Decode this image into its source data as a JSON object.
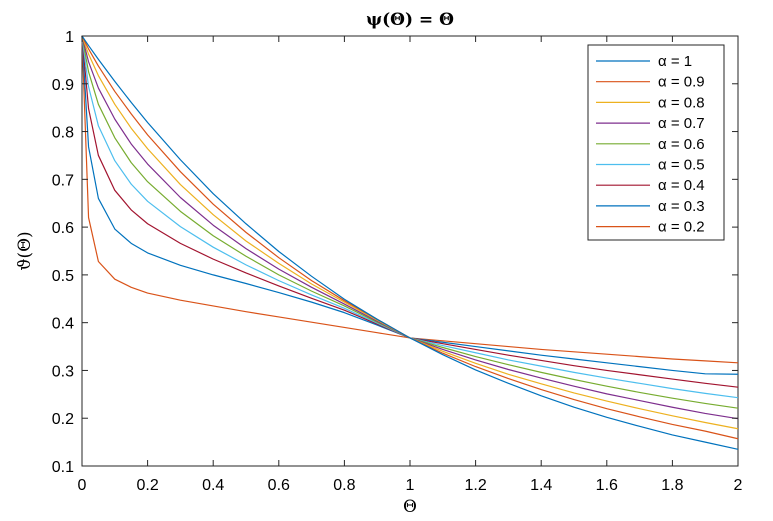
{
  "chart_data": {
    "type": "line",
    "title": "ψ(Θ) = Θ",
    "xlabel": "Θ",
    "ylabel": "ϑ(Θ)",
    "xlim": [
      0,
      2
    ],
    "ylim": [
      0.1,
      1
    ],
    "xticks": [
      0,
      0.2,
      0.4,
      0.6,
      0.8,
      1,
      1.2,
      1.4,
      1.6,
      1.8,
      2
    ],
    "xtick_labels": [
      "0",
      "0.2",
      "0.4",
      "0.6",
      "0.8",
      "1",
      "1.2",
      "1.4",
      "1.6",
      "1.8",
      "2"
    ],
    "yticks": [
      0.1,
      0.2,
      0.3,
      0.4,
      0.5,
      0.6,
      0.7,
      0.8,
      0.9,
      1
    ],
    "ytick_labels": [
      "0.1",
      "0.2",
      "0.3",
      "0.4",
      "0.5",
      "0.6",
      "0.7",
      "0.8",
      "0.9",
      "1"
    ],
    "grid": false,
    "legend_position": "top-right",
    "x": [
      0,
      0.02,
      0.05,
      0.1,
      0.15,
      0.2,
      0.3,
      0.4,
      0.5,
      0.6,
      0.7,
      0.8,
      0.9,
      1,
      1.1,
      1.2,
      1.3,
      1.4,
      1.5,
      1.6,
      1.7,
      1.8,
      1.9,
      2
    ],
    "series": [
      {
        "name": "α = 1",
        "color": "#0072BD",
        "values": [
          1,
          0.98,
          0.951,
          0.905,
          0.861,
          0.819,
          0.741,
          0.67,
          0.607,
          0.549,
          0.497,
          0.449,
          0.407,
          0.368,
          0.333,
          0.301,
          0.273,
          0.247,
          0.223,
          0.202,
          0.183,
          0.165,
          0.15,
          0.135
        ]
      },
      {
        "name": "α = 0.9",
        "color": "#D95319",
        "values": [
          1,
          0.973,
          0.937,
          0.884,
          0.837,
          0.793,
          0.716,
          0.648,
          0.589,
          0.536,
          0.488,
          0.446,
          0.407,
          0.368,
          0.336,
          0.308,
          0.283,
          0.26,
          0.239,
          0.22,
          0.203,
          0.187,
          0.173,
          0.157
        ]
      },
      {
        "name": "α = 0.8",
        "color": "#EDB120",
        "values": [
          1,
          0.962,
          0.917,
          0.857,
          0.807,
          0.764,
          0.689,
          0.626,
          0.571,
          0.524,
          0.481,
          0.443,
          0.405,
          0.368,
          0.34,
          0.315,
          0.292,
          0.272,
          0.253,
          0.236,
          0.22,
          0.205,
          0.191,
          0.178
        ]
      },
      {
        "name": "α = 0.7",
        "color": "#7E2F8E",
        "values": [
          1,
          0.946,
          0.891,
          0.826,
          0.774,
          0.732,
          0.662,
          0.604,
          0.555,
          0.512,
          0.474,
          0.439,
          0.403,
          0.368,
          0.344,
          0.322,
          0.302,
          0.284,
          0.267,
          0.251,
          0.237,
          0.223,
          0.21,
          0.199
        ]
      },
      {
        "name": "α = 0.6",
        "color": "#77AC30",
        "values": [
          1,
          0.925,
          0.857,
          0.787,
          0.735,
          0.695,
          0.633,
          0.582,
          0.539,
          0.5,
          0.466,
          0.435,
          0.401,
          0.368,
          0.348,
          0.329,
          0.312,
          0.296,
          0.281,
          0.267,
          0.254,
          0.242,
          0.231,
          0.221
        ]
      },
      {
        "name": "α = 0.5",
        "color": "#4DBEEE",
        "values": [
          1,
          0.894,
          0.812,
          0.739,
          0.69,
          0.654,
          0.601,
          0.558,
          0.521,
          0.488,
          0.458,
          0.43,
          0.399,
          0.368,
          0.352,
          0.337,
          0.322,
          0.309,
          0.296,
          0.284,
          0.273,
          0.262,
          0.252,
          0.243
        ]
      },
      {
        "name": "α = 0.4",
        "color": "#A2142F",
        "values": [
          1,
          0.848,
          0.75,
          0.677,
          0.636,
          0.607,
          0.566,
          0.533,
          0.504,
          0.477,
          0.451,
          0.426,
          0.397,
          0.368,
          0.356,
          0.344,
          0.332,
          0.321,
          0.31,
          0.3,
          0.291,
          0.282,
          0.273,
          0.265
        ]
      },
      {
        "name": "α = 0.3",
        "color": "#0072BD",
        "values": [
          1,
          0.768,
          0.66,
          0.596,
          0.566,
          0.546,
          0.52,
          0.5,
          0.482,
          0.463,
          0.443,
          0.421,
          0.395,
          0.368,
          0.359,
          0.35,
          0.341,
          0.332,
          0.324,
          0.316,
          0.308,
          0.3,
          0.293,
          0.292
        ]
      },
      {
        "name": "α = 0.2",
        "color": "#D95319",
        "values": [
          1,
          0.62,
          0.528,
          0.491,
          0.474,
          0.462,
          0.447,
          0.435,
          0.423,
          0.412,
          0.401,
          0.39,
          0.379,
          0.368,
          0.362,
          0.356,
          0.35,
          0.344,
          0.339,
          0.334,
          0.329,
          0.324,
          0.32,
          0.316
        ]
      }
    ]
  }
}
